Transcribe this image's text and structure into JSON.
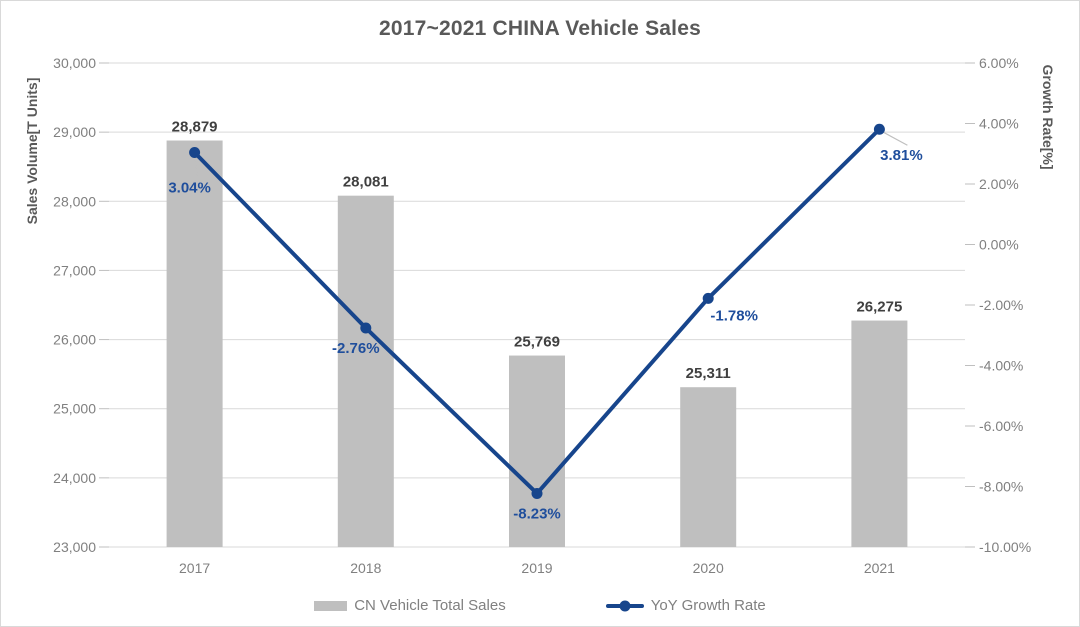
{
  "title": "2017~2021 CHINA Vehicle Sales",
  "colors": {
    "bar": "#BFBFBF",
    "line": "#17458C",
    "label_blue": "#1F4E9C",
    "label_dark": "#404040",
    "axis_text": "#808080",
    "title_text": "#595959",
    "gridline": "#D9D9D9",
    "tick": "#BFBFBF",
    "border": "#D9D9D9",
    "leader": "#BFBFBF"
  },
  "chart_data": {
    "type": "combo",
    "title": "2017~2021 CHINA Vehicle Sales",
    "categories": [
      "2017",
      "2018",
      "2019",
      "2020",
      "2021"
    ],
    "series": [
      {
        "name": "CN Vehicle Total Sales",
        "type": "bar",
        "axis": "left",
        "values": [
          28879,
          28081,
          25769,
          25311,
          26275
        ],
        "labels": [
          "28,879",
          "28,081",
          "25,769",
          "25,311",
          "26,275"
        ]
      },
      {
        "name": "YoY Growth Rate",
        "type": "line",
        "axis": "right",
        "values": [
          3.04,
          -2.76,
          -8.23,
          -1.78,
          3.81
        ],
        "labels": [
          "3.04%",
          "-2.76%",
          "-8.23%",
          "-1.78%",
          "3.81%"
        ]
      }
    ],
    "left_axis": {
      "title": "Sales Volume[T Units]",
      "min": 23000,
      "max": 30000,
      "step": 1000,
      "tick_labels": [
        "30,000",
        "29,000",
        "28,000",
        "27,000",
        "26,000",
        "25,000",
        "24,000",
        "23,000"
      ]
    },
    "right_axis": {
      "title": "Growth Rate[%]",
      "min": -10,
      "max": 6,
      "step": 2,
      "tick_labels": [
        "6.00%",
        "4.00%",
        "2.00%",
        "0.00%",
        "-2.00%",
        "-4.00%",
        "-6.00%",
        "-8.00%",
        "-10.00%"
      ]
    },
    "grid": true,
    "legend_position": "bottom"
  },
  "legend": {
    "items": [
      {
        "label": "CN Vehicle Total Sales"
      },
      {
        "label": "YoY Growth Rate"
      }
    ]
  }
}
